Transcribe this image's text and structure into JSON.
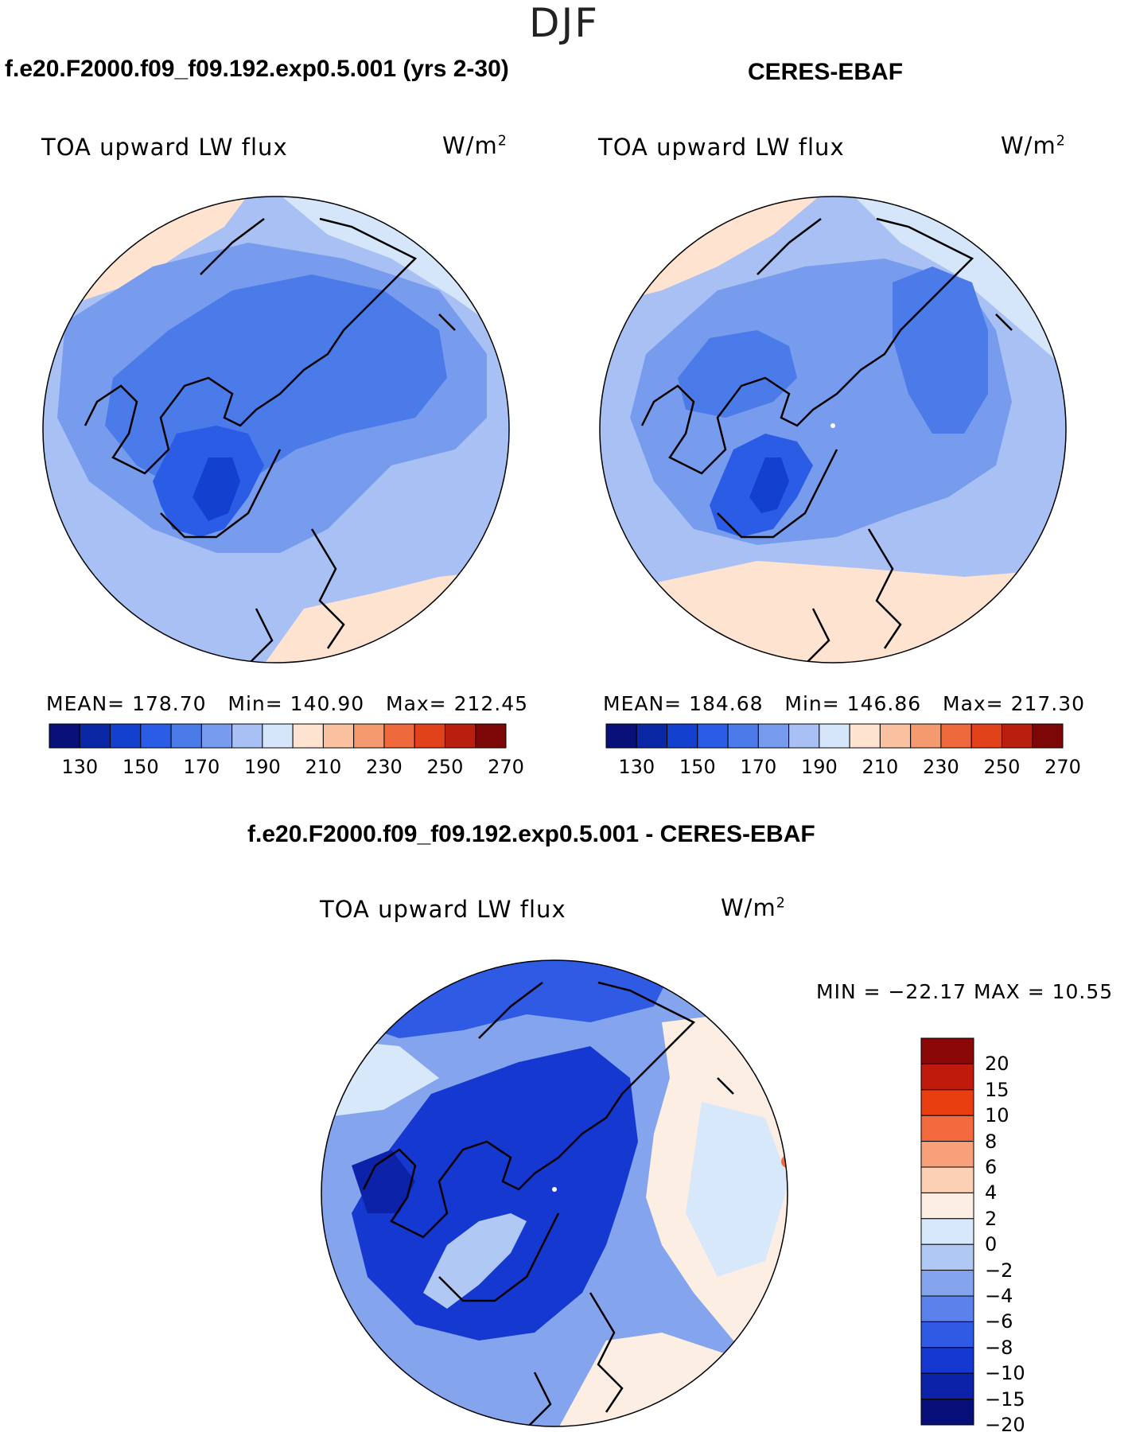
{
  "figure": {
    "season": "DJF",
    "left_title": "f.e20.F2000.f09_f09.192.exp0.5.001 (yrs 2-30)",
    "right_title": "CERES-EBAF",
    "diff_title": "f.e20.F2000.f09_f09.192.exp0.5.001 - CERES-EBAF"
  },
  "chart_data": [
    {
      "type": "heatmap",
      "projection": "north polar stereographic",
      "panel": "model",
      "variable": "TOA upward LW flux",
      "units": "W/m",
      "units_exponent": "2",
      "stats": {
        "mean_label": "MEAN=",
        "mean": "178.70",
        "min_label": "Min=",
        "min": "140.90",
        "max_label": "Max=",
        "max": "212.45"
      },
      "colorbar": {
        "orientation": "horizontal",
        "levels": [
          130,
          140,
          150,
          160,
          170,
          180,
          190,
          200,
          210,
          220,
          230,
          240,
          250,
          260,
          270
        ],
        "tick_labels": [
          "130",
          "150",
          "170",
          "190",
          "210",
          "230",
          "250",
          "270"
        ],
        "colors": [
          "#08107a",
          "#0a27a6",
          "#1440d0",
          "#2a5ce6",
          "#4a7be8",
          "#779cee",
          "#a8c0f4",
          "#d6e6fa",
          "#fde3d0",
          "#f9c1a0",
          "#f49a6e",
          "#ee6a3c",
          "#e2421a",
          "#b91e0e",
          "#7d0606"
        ]
      }
    },
    {
      "type": "heatmap",
      "projection": "north polar stereographic",
      "panel": "observation",
      "variable": "TOA upward LW flux",
      "units": "W/m",
      "units_exponent": "2",
      "stats": {
        "mean_label": "MEAN=",
        "mean": "184.68",
        "min_label": "Min=",
        "min": "146.86",
        "max_label": "Max=",
        "max": "217.30"
      },
      "colorbar": {
        "orientation": "horizontal",
        "levels": [
          130,
          140,
          150,
          160,
          170,
          180,
          190,
          200,
          210,
          220,
          230,
          240,
          250,
          260,
          270
        ],
        "tick_labels": [
          "130",
          "150",
          "170",
          "190",
          "210",
          "230",
          "250",
          "270"
        ],
        "colors": [
          "#08107a",
          "#0a27a6",
          "#1440d0",
          "#2a5ce6",
          "#4a7be8",
          "#779cee",
          "#a8c0f4",
          "#d6e6fa",
          "#fde3d0",
          "#f9c1a0",
          "#f49a6e",
          "#ee6a3c",
          "#e2421a",
          "#b91e0e",
          "#7d0606"
        ]
      }
    },
    {
      "type": "heatmap",
      "projection": "north polar stereographic",
      "panel": "difference",
      "variable": "TOA upward LW flux",
      "units": "W/m",
      "units_exponent": "2",
      "stats": {
        "text": "MIN = −22.17 MAX =   10.55"
      },
      "colorbar": {
        "orientation": "vertical",
        "levels": [
          -20,
          -15,
          -10,
          -8,
          -6,
          -4,
          -2,
          0,
          2,
          4,
          6,
          8,
          10,
          15,
          20
        ],
        "tick_labels": [
          "20",
          "15",
          "10",
          "8",
          "6",
          "4",
          "2",
          "0",
          "−2",
          "−4",
          "−6",
          "−8",
          "−10",
          "−15",
          "−20"
        ],
        "colors_top_to_bottom": [
          "#8a0808",
          "#c01a0c",
          "#e83e10",
          "#f26a3e",
          "#f7a07a",
          "#fcd0b4",
          "#fdeee4",
          "#d8e8fb",
          "#b0c8f4",
          "#84a4ee",
          "#5a82ea",
          "#2e5ae4",
          "#1438d0",
          "#0c22a8",
          "#060e78"
        ]
      }
    }
  ]
}
